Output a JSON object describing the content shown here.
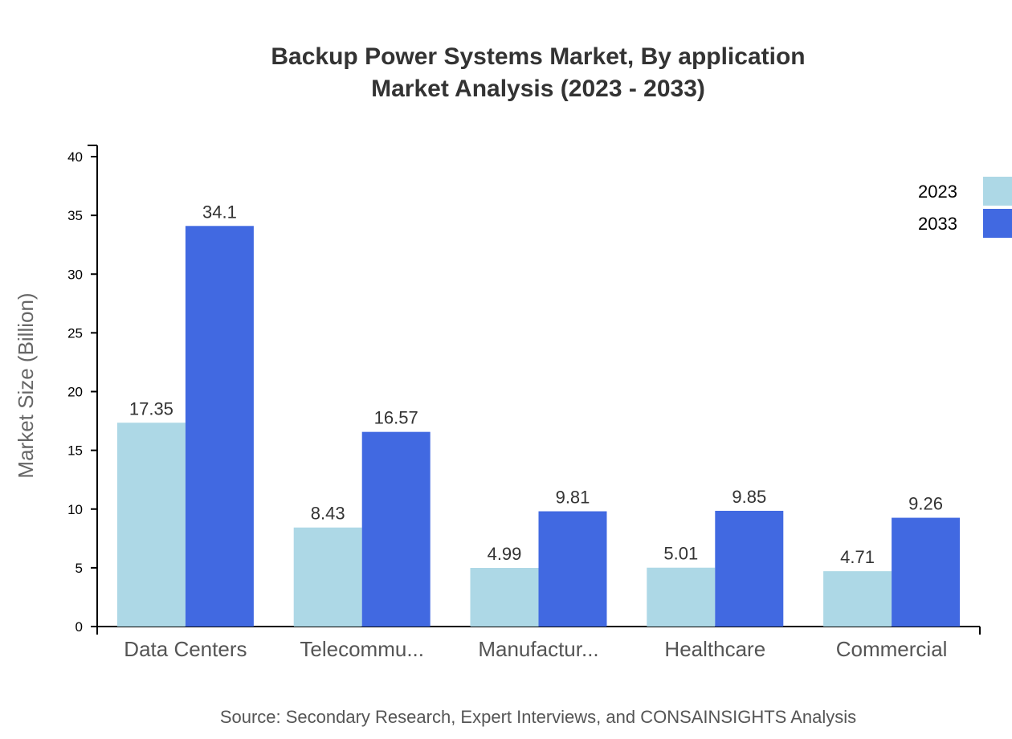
{
  "chart_data": {
    "type": "bar",
    "title_line1": "Backup Power Systems Market, By application",
    "title_line2": "Market Analysis (2023 - 2033)",
    "ylabel": "Market Size (Billion)",
    "xlabel": "",
    "ylim": [
      0,
      40
    ],
    "yticks": [
      0,
      5,
      10,
      15,
      20,
      25,
      30,
      35,
      40
    ],
    "categories": [
      "Data Centers",
      "Telecommu...",
      "Manufactur...",
      "Healthcare",
      "Commercial"
    ],
    "series": [
      {
        "name": "2023",
        "color": "#add8e6",
        "values": [
          17.35,
          8.43,
          4.99,
          5.01,
          4.71
        ]
      },
      {
        "name": "2033",
        "color": "#4169e1",
        "values": [
          34.1,
          16.57,
          9.81,
          9.85,
          9.26
        ]
      }
    ],
    "legend_position": "top-right",
    "grid": false,
    "source": "Source: Secondary Research, Expert Interviews, and CONSAINSIGHTS Analysis"
  }
}
